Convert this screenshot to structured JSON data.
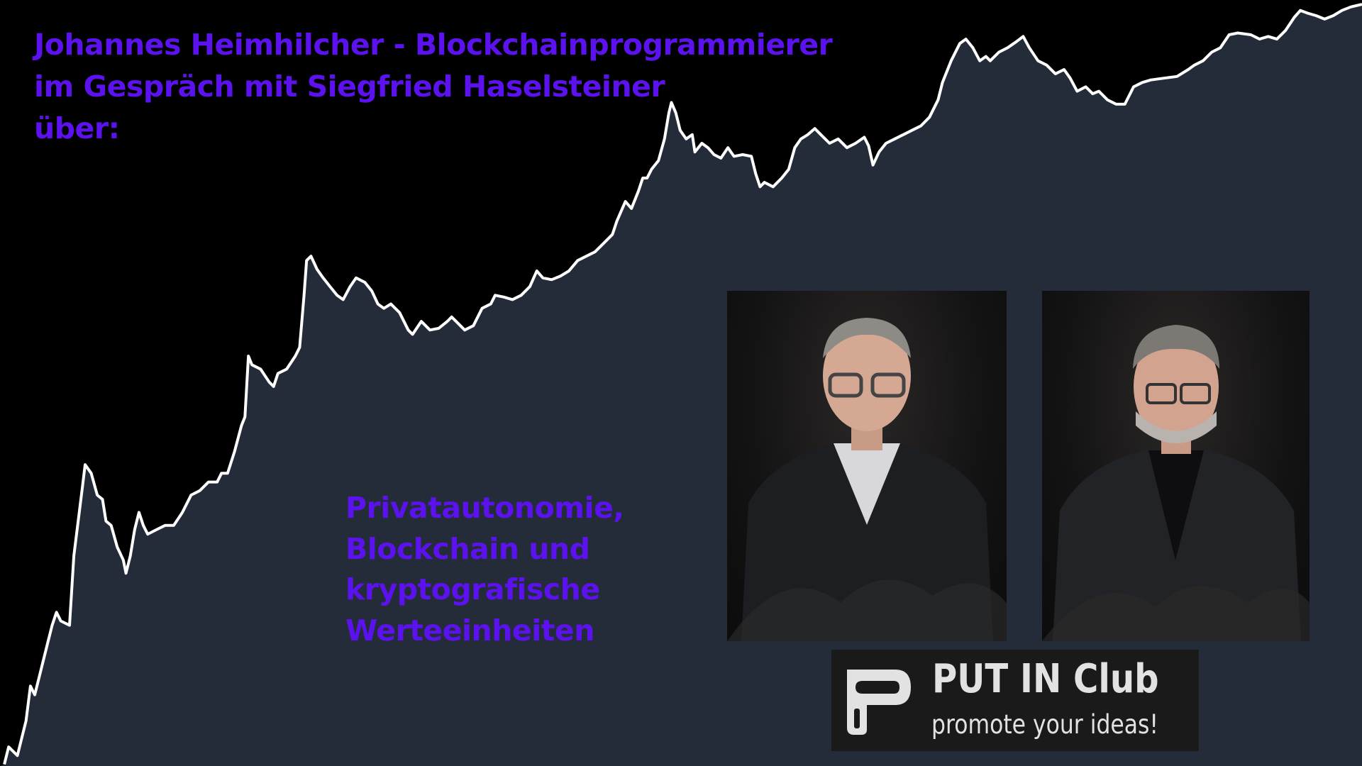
{
  "heading": {
    "lines": [
      "Johannes Heimhilcher - Blockchainprogrammierer",
      "im Gespräch mit Siegfried Haselsteiner",
      "über:"
    ]
  },
  "topic": {
    "lines": [
      "Privatautonomie,",
      "Blockchain und",
      "kryptografische",
      "Werteeinheiten"
    ]
  },
  "logo": {
    "name": "PUT IN Club",
    "slogan": "promote your ideas!"
  },
  "colors": {
    "accent": "#5b12ef",
    "area_fill": "#252c39",
    "line": "#ffffff",
    "background": "#000000"
  },
  "chart_data": {
    "type": "area",
    "title": "",
    "xlabel": "",
    "ylabel": "",
    "grid": false,
    "series": [
      {
        "x": [
          5,
          10,
          20,
          30,
          35,
          40,
          45,
          50,
          55,
          60,
          65,
          70,
          80,
          85,
          90,
          95,
          98,
          105,
          112,
          118,
          122,
          128,
          135,
          142,
          145,
          150,
          155,
          160,
          165,
          170,
          180,
          190,
          200,
          210,
          220,
          230,
          240,
          250,
          255,
          262,
          270,
          278,
          282,
          286,
          290,
          300,
          310,
          315,
          320,
          330,
          340,
          345,
          350,
          353,
          358,
          365,
          372,
          380,
          388,
          395,
          403,
          410,
          420,
          428,
          435,
          442,
          450,
          460,
          470,
          475,
          485,
          495,
          505,
          515,
          520,
          525,
          535,
          545,
          555,
          565,
          570,
          580,
          590,
          600,
          610,
          618,
          625,
          635,
          645,
          655,
          665,
          675,
          685,
          695,
          705,
          710,
          720,
          727,
          735,
          740,
          745,
          750,
          758,
          765,
          770,
          773,
          778,
          783,
          790,
          797,
          800,
          808,
          815,
          822,
          830,
          838,
          845,
          855,
          865,
          870,
          875,
          880,
          890,
          900,
          908,
          915,
          922,
          930,
          938,
          945,
          955,
          965,
          975,
          985,
          995,
          1000,
          1005,
          1012,
          1020,
          1030,
          1040,
          1050,
          1060,
          1070,
          1080,
          1085,
          1095,
          1105,
          1112,
          1120,
          1128,
          1135,
          1140,
          1150,
          1160,
          1170,
          1178,
          1185,
          1195,
          1205,
          1215,
          1225,
          1232,
          1240,
          1250,
          1258,
          1265,
          1275,
          1285,
          1295,
          1305,
          1315,
          1325,
          1340,
          1355,
          1368,
          1375,
          1385,
          1395,
          1405,
          1415,
          1425,
          1440,
          1450,
          1460,
          1470,
          1480,
          1490,
          1497,
          1505,
          1515,
          1525,
          1535,
          1545,
          1555,
          1568
        ],
        "values": [
          2,
          22,
          12,
          52,
          92,
          82,
          102,
          122,
          142,
          162,
          177,
          167,
          162,
          242,
          282,
          322,
          347,
          337,
          312,
          307,
          282,
          277,
          252,
          237,
          222,
          242,
          272,
          292,
          277,
          267,
          272,
          277,
          277,
          292,
          312,
          317,
          327,
          327,
          337,
          337,
          362,
          392,
          402,
          472,
          462,
          457,
          442,
          437,
          452,
          457,
          472,
          482,
          542,
          582,
          587,
          572,
          562,
          552,
          542,
          537,
          552,
          562,
          557,
          547,
          532,
          527,
          532,
          522,
          502,
          497,
          512,
          502,
          504,
          512,
          517,
          512,
          502,
          507,
          527,
          532,
          542,
          540,
          537,
          542,
          552,
          570,
          562,
          560,
          564,
          570,
          582,
          587,
          592,
          602,
          612,
          627,
          650,
          642,
          662,
          677,
          677,
          687,
          697,
          722,
          752,
          764,
          752,
          732,
          722,
          727,
          707,
          717,
          712,
          704,
          700,
          712,
          702,
          704,
          702,
          682,
          667,
          672,
          667,
          677,
          687,
          712,
          722,
          727,
          734,
          727,
          717,
          722,
          712,
          717,
          724,
          714,
          692,
          707,
          717,
          722,
          727,
          732,
          737,
          747,
          767,
          787,
          812,
          832,
          837,
          827,
          812,
          817,
          812,
          822,
          827,
          834,
          840,
          827,
          812,
          807,
          797,
          802,
          792,
          777,
          782,
          774,
          777,
          767,
          762,
          762,
          782,
          787,
          790,
          792,
          794,
          802,
          807,
          812,
          822,
          827,
          842,
          844,
          842,
          837,
          840,
          837,
          847,
          862,
          870,
          867,
          864,
          860,
          864,
          870,
          874,
          877
        ]
      }
    ]
  }
}
